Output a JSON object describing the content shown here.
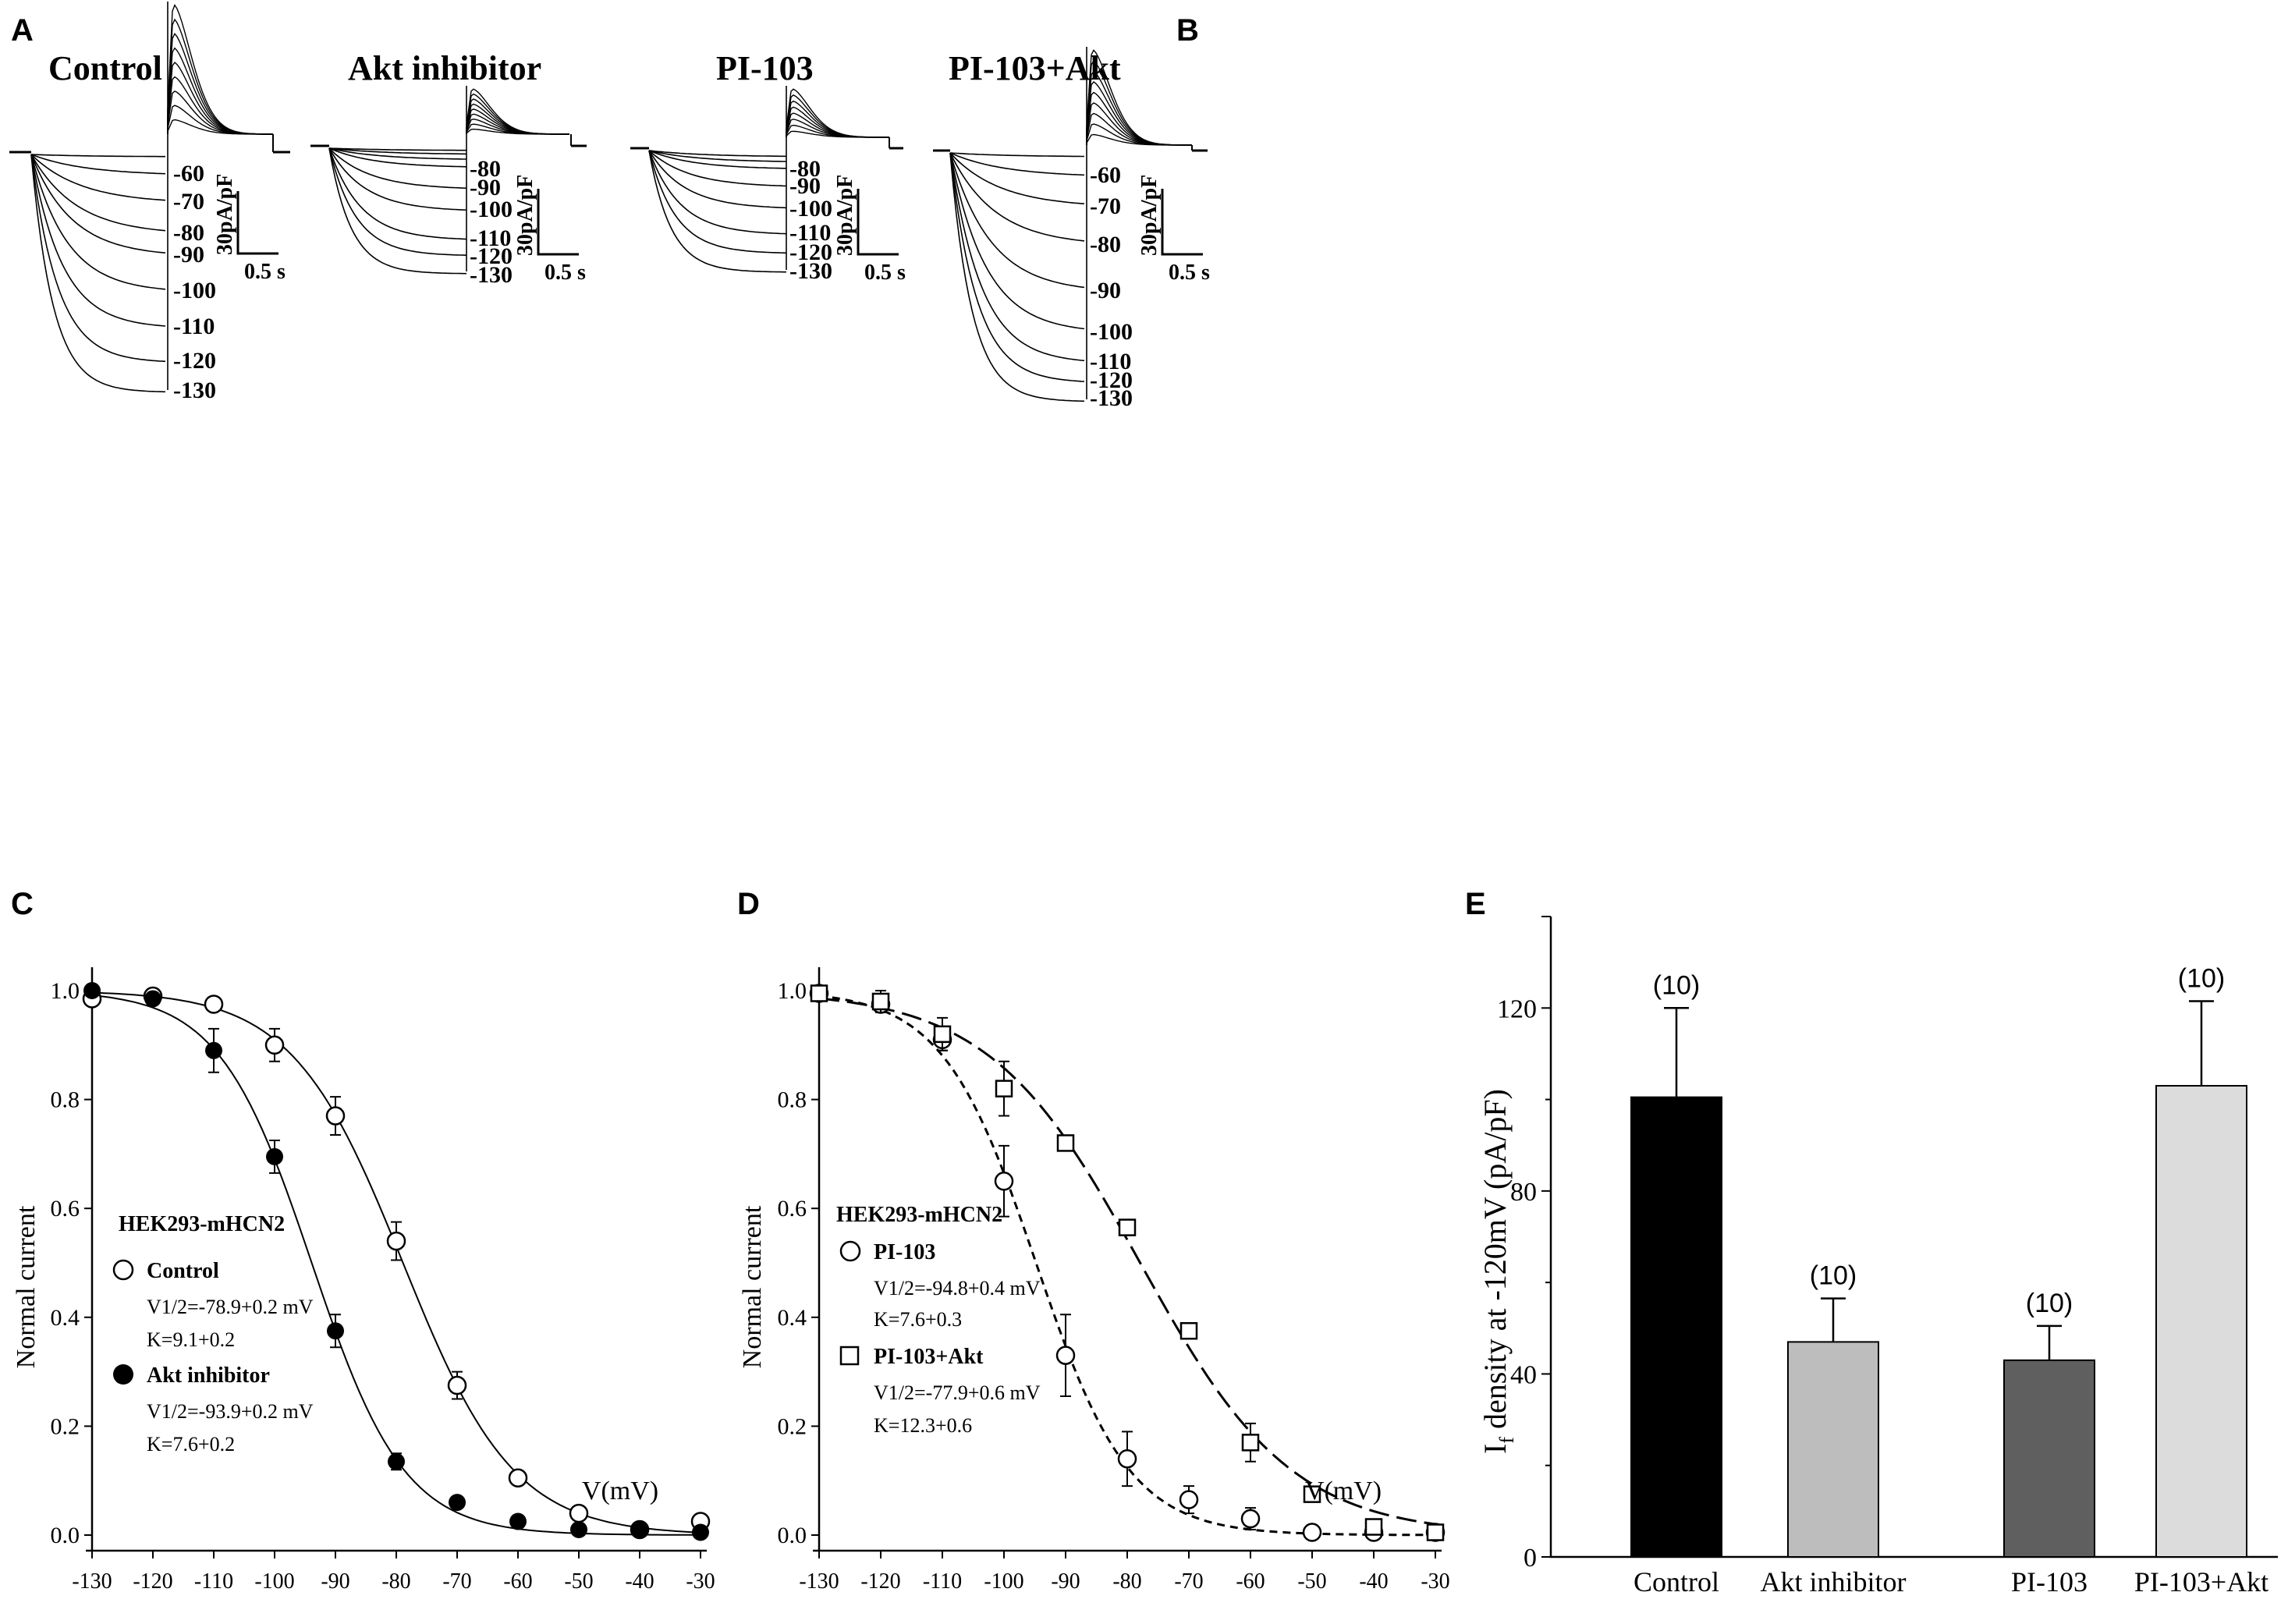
{
  "figure": {
    "panel_letters": [
      "A",
      "B",
      "C",
      "D",
      "E"
    ],
    "traces": [
      {
        "title": "Control",
        "labels": [
          "-60",
          "-70",
          "-80",
          "-90",
          "-100",
          "-110",
          "-120",
          "-130"
        ],
        "scale_y": "30pA/pF",
        "scale_x": "0.5 s"
      },
      {
        "title": "Akt inhibitor",
        "labels": [
          "-80",
          "-90",
          "-100",
          "-110",
          "-120",
          "-130"
        ],
        "scale_y": "30pA/pF",
        "scale_x": "0.5 s"
      },
      {
        "title": "PI-103",
        "labels": [
          "-80",
          "-90",
          "-100",
          "-110",
          "-120",
          "-130"
        ],
        "scale_y": "30pA/pF",
        "scale_x": "0.5 s"
      },
      {
        "title": "PI-103+Akt",
        "labels": [
          "-60",
          "-70",
          "-80",
          "-90",
          "-100",
          "-110",
          "-120",
          "-130"
        ],
        "scale_y": "30pA/pF",
        "scale_x": "0.5 s"
      }
    ]
  },
  "chart_data": [
    {
      "panel": "C",
      "type": "scatter",
      "ylabel": "Normal current",
      "xlabel": "V(mV)",
      "xlim": [
        -130,
        -30
      ],
      "ylim": [
        0,
        1
      ],
      "x_ticks": [
        "-130",
        "-120",
        "-110",
        "-100",
        "-90",
        "-80",
        "-70",
        "-60",
        "-50",
        "-40",
        "-30"
      ],
      "y_ticks": [
        "0.0",
        "0.2",
        "0.4",
        "0.6",
        "0.8",
        "1.0"
      ],
      "legend_title": "HEK293-mHCN2",
      "series": [
        {
          "name": "Control",
          "marker": "open-circle",
          "fit": "solid",
          "v_half_label": "V1/2=-78.9+0.2 mV",
          "k_label": "K=9.1+0.2",
          "v_half": -78.9,
          "k": 9.1,
          "x": [
            -130,
            -120,
            -110,
            -100,
            -90,
            -80,
            -70,
            -60,
            -50,
            -40,
            -30
          ],
          "y": [
            0.985,
            0.99,
            0.975,
            0.9,
            0.77,
            0.54,
            0.275,
            0.105,
            0.04,
            0.01,
            0.025
          ],
          "err": [
            0,
            0.01,
            0.01,
            0.03,
            0.035,
            0.035,
            0.025,
            0.01,
            0.01,
            0.005,
            0.005
          ]
        },
        {
          "name": "Akt inhibitor",
          "marker": "filled-circle",
          "fit": "solid",
          "v_half_label": "V1/2=-93.9+0.2 mV",
          "k_label": "K=7.6+0.2",
          "v_half": -93.9,
          "k": 7.6,
          "x": [
            -130,
            -120,
            -110,
            -100,
            -90,
            -80,
            -70,
            -60,
            -50,
            -40,
            -30
          ],
          "y": [
            1.0,
            0.985,
            0.89,
            0.695,
            0.375,
            0.135,
            0.06,
            0.025,
            0.01,
            0.01,
            0.005
          ],
          "err": [
            0,
            0.01,
            0.04,
            0.03,
            0.03,
            0.015,
            0.005,
            0.005,
            0.005,
            0.005,
            0.005
          ]
        }
      ]
    },
    {
      "panel": "D",
      "type": "scatter",
      "ylabel": "Normal current",
      "xlabel": "V(mV)",
      "xlim": [
        -130,
        -30
      ],
      "ylim": [
        0,
        1
      ],
      "x_ticks": [
        "-130",
        "-120",
        "-110",
        "-100",
        "-90",
        "-80",
        "-70",
        "-60",
        "-50",
        "-40",
        "-30"
      ],
      "y_ticks": [
        "0.0",
        "0.2",
        "0.4",
        "0.6",
        "0.8",
        "1.0"
      ],
      "legend_title": "HEK293-mHCN2",
      "series": [
        {
          "name": "PI-103",
          "marker": "open-circle",
          "fit": "short-dash",
          "v_half_label": "V1/2=-94.8+0.4 mV",
          "k_label": "K=7.6+0.3",
          "v_half": -94.8,
          "k": 7.6,
          "x": [
            -130,
            -120,
            -110,
            -100,
            -90,
            -80,
            -70,
            -60,
            -50,
            -40,
            -30
          ],
          "y": [
            0.995,
            0.975,
            0.91,
            0.65,
            0.33,
            0.14,
            0.065,
            0.03,
            0.005,
            0.005,
            0.005
          ],
          "err": [
            0.005,
            0.01,
            0.02,
            0.065,
            0.075,
            0.05,
            0.025,
            0.02,
            0.005,
            0.005,
            0.005
          ]
        },
        {
          "name": "PI-103+Akt",
          "marker": "open-square",
          "fit": "long-dash",
          "v_half_label": "V1/2=-77.9+0.6 mV",
          "k_label": "K=12.3+0.6",
          "v_half": -77.9,
          "k": 12.3,
          "x": [
            -130,
            -120,
            -110,
            -100,
            -90,
            -80,
            -70,
            -60,
            -50,
            -40,
            -30
          ],
          "y": [
            0.995,
            0.98,
            0.92,
            0.82,
            0.72,
            0.565,
            0.375,
            0.17,
            0.075,
            0.015,
            0.005
          ],
          "err": [
            0.005,
            0.02,
            0.03,
            0.05,
            0.005,
            0.005,
            0.005,
            0.035,
            0.01,
            0.005,
            0.005
          ]
        }
      ]
    },
    {
      "panel": "E",
      "type": "bar",
      "ylabel_main": "I",
      "ylabel_sub": "f",
      "ylabel_rest": " density at -120mV (pA/pF)",
      "ylim": [
        0,
        140
      ],
      "y_ticks": [
        0,
        40,
        80,
        120
      ],
      "categories": [
        "Control",
        "Akt inhibitor",
        "PI-103",
        "PI-103+Akt"
      ],
      "values": [
        100.5,
        47,
        43,
        103
      ],
      "errors": [
        19.5,
        9.5,
        7.5,
        18.5
      ],
      "n_labels": [
        "(10)",
        "(10)",
        "(10)",
        "(10)"
      ],
      "colors": [
        "#000000",
        "#bdbdbd",
        "#5f5f5f",
        "#dcdcdc"
      ]
    }
  ]
}
